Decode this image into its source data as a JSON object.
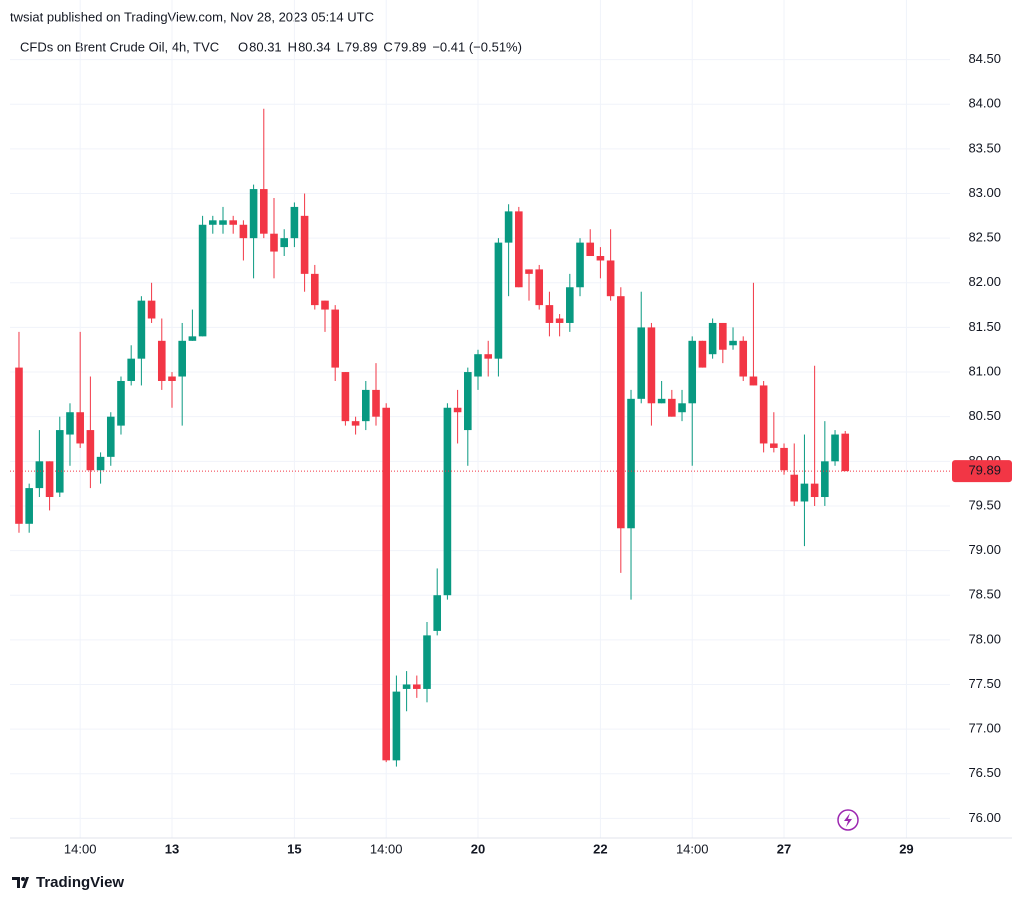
{
  "header": {
    "publisher": "twsiat published on TradingView.com, Nov 28, 2023 05:14 UTC",
    "footer": "TradingView"
  },
  "chart_data": {
    "type": "candlestick",
    "title": "CFDs on Brent Crude Oil, 4h, TVC",
    "legend": {
      "labels": [
        "O",
        "H",
        "L",
        "C"
      ],
      "values": [
        80.31,
        80.34,
        79.89,
        79.89
      ],
      "change": "−0.41 (−0.51%)"
    },
    "up_color": "#089981",
    "down_color": "#f23645",
    "open": [
      81.05,
      79.3,
      79.7,
      80.0,
      79.65,
      80.3,
      80.55,
      80.35,
      79.9,
      80.05,
      80.4,
      80.9,
      81.15,
      81.8,
      81.35,
      80.95,
      80.95,
      81.35,
      81.4,
      82.65,
      82.65,
      82.7,
      82.65,
      82.5,
      83.05,
      82.55,
      82.4,
      82.5,
      82.75,
      82.1,
      81.8,
      81.7,
      81.0,
      80.45,
      80.45,
      80.8,
      80.6,
      76.65,
      77.45,
      77.5,
      77.45,
      78.1,
      78.5,
      80.6,
      80.35,
      80.95,
      81.2,
      81.15,
      82.45,
      82.8,
      82.15,
      82.15,
      81.75,
      81.6,
      81.55,
      81.95,
      82.45,
      82.3,
      82.25,
      81.85,
      79.25,
      80.7,
      81.5,
      80.65,
      80.7,
      80.55,
      80.65,
      81.35,
      81.2,
      81.55,
      81.3,
      81.35,
      80.95,
      80.85,
      80.2,
      80.15,
      79.85,
      79.55,
      79.75,
      79.6,
      80.0,
      80.31
    ],
    "high": [
      81.45,
      79.75,
      80.35,
      80.0,
      80.5,
      80.65,
      81.45,
      80.95,
      80.1,
      80.55,
      80.95,
      81.3,
      81.85,
      82.0,
      81.6,
      81.0,
      81.55,
      81.7,
      82.75,
      82.75,
      82.85,
      82.75,
      82.7,
      83.1,
      83.95,
      82.95,
      82.6,
      82.9,
      83.0,
      82.2,
      81.8,
      81.75,
      81.0,
      80.5,
      80.9,
      81.1,
      80.65,
      77.6,
      77.65,
      77.6,
      78.2,
      78.8,
      80.65,
      80.8,
      81.05,
      81.25,
      81.35,
      82.5,
      82.88,
      82.85,
      82.15,
      82.2,
      81.9,
      81.65,
      82.1,
      82.5,
      82.6,
      82.4,
      82.6,
      81.95,
      80.8,
      81.9,
      81.55,
      80.9,
      80.8,
      80.8,
      81.4,
      81.35,
      81.6,
      81.55,
      81.5,
      81.4,
      82.0,
      80.9,
      80.55,
      80.2,
      80.2,
      80.3,
      81.07,
      80.45,
      80.35,
      80.34
    ],
    "low": [
      79.2,
      79.2,
      79.6,
      79.45,
      79.6,
      79.95,
      80.15,
      79.7,
      79.75,
      79.95,
      80.3,
      80.85,
      80.85,
      81.55,
      80.8,
      80.6,
      80.4,
      81.35,
      81.4,
      82.55,
      82.55,
      82.55,
      82.25,
      82.05,
      82.5,
      82.05,
      82.3,
      82.4,
      81.9,
      81.7,
      81.45,
      80.9,
      80.4,
      80.3,
      80.35,
      80.4,
      76.63,
      76.58,
      77.2,
      77.35,
      77.3,
      78.05,
      78.45,
      80.2,
      79.95,
      80.8,
      80.95,
      80.95,
      81.85,
      81.95,
      81.8,
      81.7,
      81.4,
      81.4,
      81.45,
      81.85,
      82.3,
      82.05,
      81.8,
      78.75,
      78.45,
      80.65,
      80.4,
      80.65,
      80.5,
      80.45,
      79.95,
      81.05,
      81.15,
      81.1,
      81.25,
      80.9,
      80.85,
      80.1,
      80.1,
      79.85,
      79.5,
      79.05,
      79.5,
      79.5,
      79.95,
      79.89
    ],
    "close": [
      79.3,
      79.7,
      80.0,
      79.6,
      80.35,
      80.55,
      80.2,
      79.9,
      80.05,
      80.5,
      80.9,
      81.15,
      81.8,
      81.6,
      80.9,
      80.9,
      81.35,
      81.4,
      82.65,
      82.7,
      82.7,
      82.65,
      82.5,
      83.05,
      82.55,
      82.35,
      82.5,
      82.85,
      82.1,
      81.75,
      81.7,
      81.05,
      80.45,
      80.4,
      80.8,
      80.5,
      76.65,
      77.42,
      77.5,
      77.45,
      78.05,
      78.5,
      80.6,
      80.55,
      81.0,
      81.2,
      81.15,
      82.45,
      82.8,
      81.95,
      82.1,
      81.75,
      81.55,
      81.55,
      81.95,
      82.45,
      82.3,
      82.25,
      81.85,
      79.25,
      80.7,
      81.5,
      80.65,
      80.7,
      80.5,
      80.65,
      81.35,
      81.05,
      81.55,
      81.25,
      81.35,
      80.95,
      80.85,
      80.2,
      80.15,
      79.9,
      79.55,
      79.75,
      79.6,
      80.0,
      80.3,
      79.89
    ],
    "last_price": 79.89,
    "xlim": [
      -0.88,
      91.27
    ],
    "xticks": [
      {
        "value": 6,
        "label": "14:00"
      },
      {
        "value": 15,
        "label": "13"
      },
      {
        "value": 27,
        "label": "15"
      },
      {
        "value": 36,
        "label": "14:00"
      },
      {
        "value": 45,
        "label": "20"
      },
      {
        "value": 57,
        "label": "22"
      },
      {
        "value": 66,
        "label": "14:00"
      },
      {
        "value": 75,
        "label": "27"
      },
      {
        "value": 87,
        "label": "29"
      }
    ],
    "ylim": [
      75.78,
      84.72
    ],
    "yticks": [
      {
        "value": 76,
        "label": "76.00"
      },
      {
        "value": 76.5,
        "label": "76.50"
      },
      {
        "value": 77,
        "label": "77.00"
      },
      {
        "value": 77.5,
        "label": "77.50"
      },
      {
        "value": 78,
        "label": "78.00"
      },
      {
        "value": 78.5,
        "label": "78.50"
      },
      {
        "value": 79,
        "label": "79.00"
      },
      {
        "value": 79.5,
        "label": "79.50"
      },
      {
        "value": 80,
        "label": "80.00"
      },
      {
        "value": 80.5,
        "label": "80.50"
      },
      {
        "value": 81,
        "label": "81.00"
      },
      {
        "value": 81.5,
        "label": "81.50"
      },
      {
        "value": 82,
        "label": "82.00"
      },
      {
        "value": 82.5,
        "label": "82.50"
      },
      {
        "value": 83,
        "label": "83.00"
      },
      {
        "value": 83.5,
        "label": "83.50"
      },
      {
        "value": 84,
        "label": "84.00"
      },
      {
        "value": 84.5,
        "label": "84.50"
      }
    ],
    "grid": true
  }
}
